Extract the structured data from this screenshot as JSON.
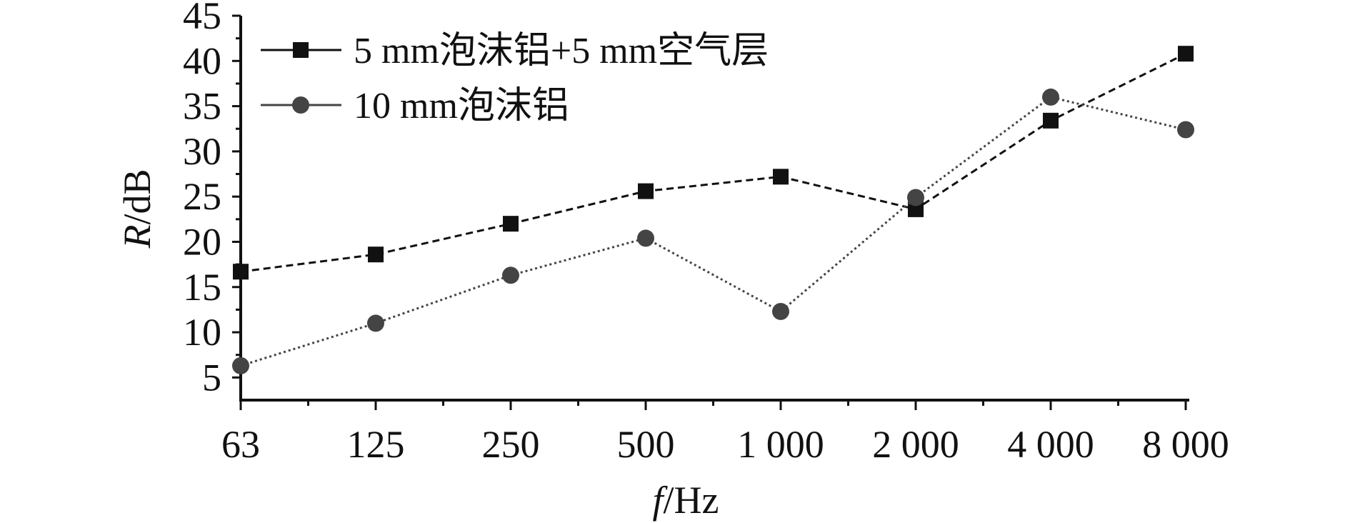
{
  "chart_data": {
    "type": "line",
    "categories": [
      "63",
      "125",
      "250",
      "500",
      "1 000",
      "2 000",
      "4 000",
      "8 000"
    ],
    "xlabel": {
      "italic": "f",
      "rest": "/Hz"
    },
    "ylabel": {
      "italic": "R",
      "rest": "/dB"
    },
    "ylim": [
      2.5,
      45
    ],
    "yticks": [
      5,
      10,
      15,
      20,
      25,
      30,
      35,
      40,
      45
    ],
    "series": [
      {
        "name": "5 mm泡沫铝+5 mm空气层",
        "marker": "square",
        "line_style": "dashed",
        "color": "#111111",
        "values": [
          16.7,
          18.6,
          22.0,
          25.6,
          27.2,
          23.6,
          33.4,
          40.8
        ]
      },
      {
        "name": "10 mm泡沫铝",
        "marker": "circle",
        "line_style": "dotted",
        "color": "#444444",
        "values": [
          6.3,
          11.0,
          16.3,
          20.4,
          12.3,
          24.9,
          36.0,
          32.4
        ]
      }
    ],
    "legend_position": "top-left",
    "grid": false
  }
}
